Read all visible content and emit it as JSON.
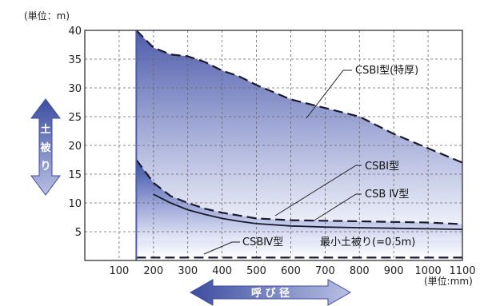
{
  "chart_data": {
    "type": "area",
    "y_unit_label": "(単位：m)",
    "x_unit_label": "(単位:mm)",
    "y_axis_arrow_label": [
      "土",
      "被",
      "り"
    ],
    "x_axis_arrow_label": "呼 び 径",
    "xlim": [
      0,
      1100
    ],
    "ylim": [
      0,
      40
    ],
    "x_ticks": [
      "100",
      "200",
      "300",
      "400",
      "500",
      "600",
      "700",
      "800",
      "900",
      "1000",
      "1100"
    ],
    "y_ticks": [
      "5",
      "10",
      "15",
      "20",
      "25",
      "30",
      "35",
      "40"
    ],
    "grid": true,
    "series": [
      {
        "name": "CSBI型(特厚)",
        "style": "dashed",
        "x": [
          150,
          200,
          250,
          300,
          350,
          400,
          450,
          500,
          600,
          700,
          800,
          900,
          1000,
          1100
        ],
        "y": [
          40,
          37,
          35.8,
          35.5,
          34.5,
          33,
          32,
          30.5,
          28,
          26.5,
          25,
          22,
          19.5,
          17
        ]
      },
      {
        "name": "CSBI型",
        "style": "dashed",
        "x": [
          150,
          200,
          250,
          300,
          350,
          400,
          450,
          500,
          600,
          700,
          800,
          900,
          1000,
          1100
        ],
        "y": [
          17.5,
          13.5,
          11.2,
          10,
          9,
          8.3,
          7.8,
          7.3,
          7,
          6.9,
          6.8,
          6.7,
          6.6,
          6.3
        ]
      },
      {
        "name": "CSB Ⅳ型",
        "style": "solid",
        "x": [
          200,
          250,
          300,
          350,
          400,
          450,
          500,
          600,
          700,
          800,
          900,
          1000,
          1100
        ],
        "y": [
          11.5,
          10,
          8.8,
          8,
          7.3,
          6.8,
          6.4,
          6,
          5.8,
          5.7,
          5.6,
          5.5,
          5.4
        ]
      },
      {
        "name": "最小土被り(=0.5m)",
        "style": "dashed",
        "x": [
          150,
          1100
        ],
        "y": [
          0.5,
          0.5
        ]
      }
    ],
    "annotations": [
      {
        "text": "CSBI型(特厚)",
        "series": 0
      },
      {
        "text": "CSBI型",
        "series": 1
      },
      {
        "text": "CSB Ⅳ型",
        "series": 2
      },
      {
        "text": "CSBⅣ型",
        "series": 2
      },
      {
        "text": "最小土被り(=0.5m)",
        "series": 3
      }
    ],
    "colors": {
      "fill_top": "#4a5aa8",
      "fill_bottom": "#ffffff",
      "band_fill": "#1e3c9a",
      "arrow": "#5a67b5"
    }
  }
}
